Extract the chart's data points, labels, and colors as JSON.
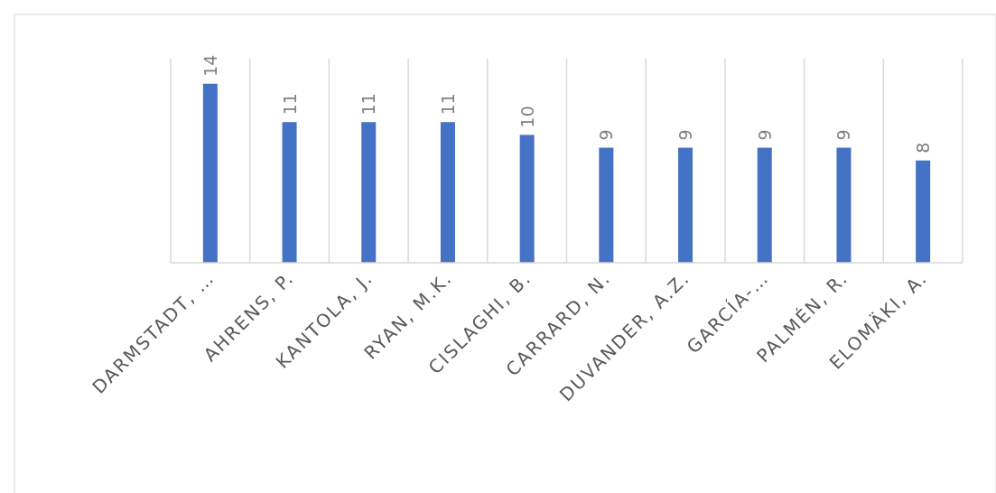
{
  "chart_data": {
    "type": "bar",
    "categories": [
      "DARMSTADT, …",
      "AHRENS, P.",
      "KANTOLA, J.",
      "RYAN, M.K.",
      "CISLAGHI, B.",
      "CARRARD, N.",
      "DUVANDER, A.Z.",
      "GARCÍA-…",
      "PALMÉN, R.",
      "ELOMÄKI, A."
    ],
    "values": [
      14,
      11,
      11,
      11,
      10,
      9,
      9,
      9,
      9,
      8
    ],
    "color": "#4472c4",
    "data_labels": true,
    "grid": "x"
  }
}
